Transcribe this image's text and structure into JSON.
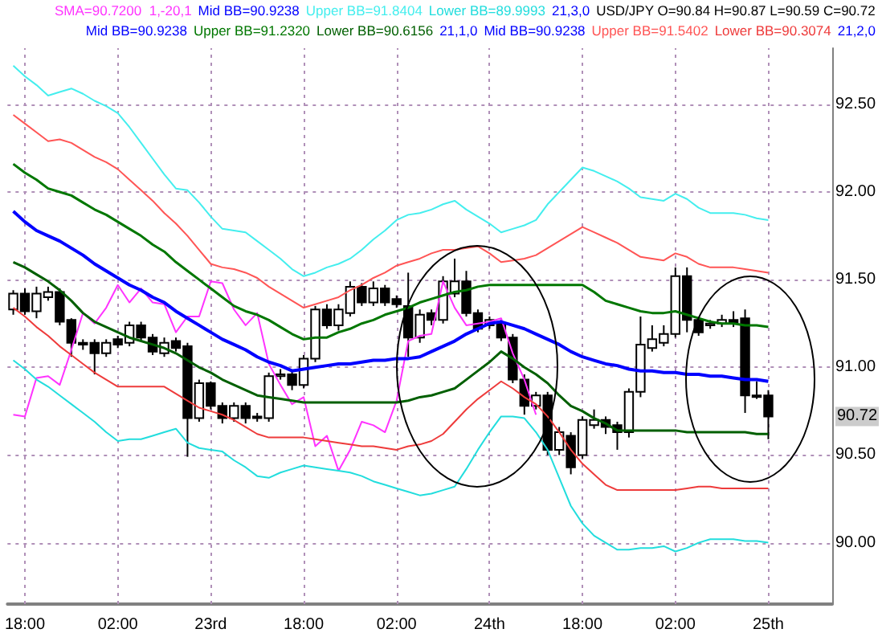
{
  "chart_data": {
    "type": "candlestick",
    "legend": "top",
    "grid": true,
    "categories": [
      null,
      "18:00",
      null,
      null,
      null,
      null,
      null,
      null,
      null,
      "02:00",
      null,
      null,
      null,
      null,
      null,
      null,
      null,
      "23rd",
      null,
      null,
      null,
      null,
      null,
      null,
      null,
      "18:00",
      null,
      null,
      null,
      null,
      null,
      null,
      null,
      "02:00",
      null,
      null,
      null,
      null,
      null,
      null,
      null,
      "24th",
      null,
      null,
      null,
      null,
      null,
      null,
      null,
      "18:00",
      null,
      null,
      null,
      null,
      null,
      null,
      null,
      "02:00",
      null,
      null,
      null,
      null,
      null,
      null,
      null,
      "25th",
      null,
      null,
      null,
      null,
      null
    ],
    "ylim": [
      89.65,
      92.82
    ],
    "yticks": [
      {
        "value": 90,
        "label": "90.00"
      },
      {
        "value": 90.5,
        "label": "90.50"
      },
      {
        "value": 91,
        "label": "91.00"
      },
      {
        "value": 91.5,
        "label": "91.50"
      },
      {
        "value": 92,
        "label": "92.00"
      },
      {
        "value": 92.5,
        "label": "92.50"
      }
    ],
    "annotations": [
      "21,3,0",
      "Mid BB=90.9238",
      "21,1,0",
      "Mid BB=90.9238",
      "21,2,0",
      {
        "text": "90.72",
        "y": 90.72
      }
    ],
    "series": [
      {
        "type": "line",
        "name": "SMA=90.7200  1,-20,1",
        "color": "#ff33ff",
        "values": [
          90.73,
          90.72,
          90.94,
          90.95,
          90.9,
          91.1,
          91.31,
          91.25,
          91.34,
          91.47,
          91.37,
          91.45,
          91.37,
          91.36,
          91.2,
          91.29,
          91.29,
          91.49,
          91.48,
          91.33,
          91.24,
          91.31,
          91.02,
          90.9,
          90.79,
          90.83,
          90.55,
          90.61,
          90.41,
          90.53,
          90.69,
          90.67,
          90.63,
          90.81,
          91.15,
          91.18,
          91.19,
          91.49,
          91.34,
          91.24,
          91.25,
          91.26,
          91.28,
          91.08,
          90.93,
          90.73,
          null,
          null,
          null,
          null,
          null,
          null,
          null,
          null,
          null,
          null,
          null,
          null,
          null,
          null,
          null,
          null,
          null,
          null,
          null,
          null,
          null,
          null,
          null,
          null,
          null
        ]
      },
      {
        "type": "line",
        "name": "Mid BB=90.9238",
        "color": "#0000ff",
        "values": [
          91.89,
          91.83,
          91.78,
          91.75,
          91.72,
          91.68,
          91.64,
          91.59,
          91.55,
          91.51,
          91.47,
          91.44,
          91.4,
          91.37,
          91.32,
          91.28,
          91.24,
          91.2,
          91.16,
          91.13,
          91.1,
          91.06,
          91.03,
          91.01,
          90.98,
          90.99,
          91.0,
          91.01,
          91.02,
          91.02,
          91.03,
          91.04,
          91.04,
          91.05,
          91.05,
          91.06,
          91.09,
          91.12,
          91.15,
          91.19,
          91.22,
          91.25,
          91.26,
          91.24,
          91.22,
          91.19,
          91.16,
          91.13,
          91.09,
          91.06,
          91.04,
          91.02,
          91.01,
          90.99,
          90.98,
          90.98,
          90.97,
          90.97,
          90.96,
          90.96,
          90.95,
          90.95,
          90.94,
          90.93,
          90.93,
          90.92,
          null,
          null,
          null,
          null,
          null
        ]
      },
      {
        "type": "line",
        "name": "Upper BB=91.8404",
        "color": "#44eeee",
        "values": [
          92.72,
          92.66,
          92.61,
          92.55,
          92.57,
          92.59,
          92.56,
          92.52,
          92.49,
          92.45,
          92.37,
          92.28,
          92.19,
          92.1,
          92.02,
          92.01,
          91.94,
          91.86,
          91.79,
          91.78,
          91.77,
          91.72,
          91.67,
          91.62,
          91.56,
          91.52,
          91.54,
          91.57,
          91.59,
          91.62,
          91.67,
          91.73,
          91.78,
          91.84,
          91.87,
          91.88,
          91.9,
          91.93,
          91.95,
          91.9,
          91.86,
          91.82,
          91.77,
          91.79,
          91.81,
          91.84,
          91.93,
          92.0,
          92.07,
          92.14,
          92.12,
          92.09,
          92.06,
          92.02,
          91.97,
          91.96,
          91.95,
          91.99,
          91.96,
          91.91,
          91.88,
          91.88,
          91.88,
          91.87,
          91.85,
          91.84,
          null,
          null,
          null,
          null,
          null
        ]
      },
      {
        "type": "line",
        "name": "Lower BB=89.9993",
        "color": "#22dddd",
        "values": [
          91.04,
          90.99,
          90.93,
          90.89,
          90.84,
          90.79,
          90.74,
          90.69,
          90.63,
          90.58,
          90.59,
          90.59,
          90.61,
          90.63,
          90.65,
          90.57,
          90.54,
          90.53,
          90.52,
          90.47,
          90.43,
          90.38,
          90.37,
          90.4,
          90.42,
          90.44,
          90.43,
          90.42,
          90.41,
          90.4,
          90.38,
          90.35,
          90.33,
          90.31,
          90.29,
          90.27,
          90.28,
          90.3,
          90.32,
          90.42,
          90.53,
          90.63,
          90.72,
          90.72,
          90.71,
          90.63,
          90.53,
          90.37,
          90.21,
          90.11,
          90.04,
          90.0,
          89.96,
          89.96,
          89.97,
          89.97,
          89.98,
          89.95,
          89.97,
          90.0,
          90.02,
          90.02,
          90.02,
          90.01,
          90.01,
          90.0,
          null,
          null,
          null,
          null,
          null
        ]
      },
      {
        "type": "line",
        "name": "Upper BB=91.2320",
        "color": "#007700",
        "values": [
          92.16,
          92.11,
          92.07,
          92.02,
          92.0,
          91.98,
          91.94,
          91.9,
          91.87,
          91.83,
          91.79,
          91.75,
          91.7,
          91.66,
          91.6,
          91.55,
          91.5,
          91.45,
          91.4,
          91.35,
          91.32,
          91.3,
          91.27,
          91.23,
          91.19,
          91.16,
          91.17,
          91.17,
          91.2,
          91.22,
          91.25,
          91.27,
          91.3,
          91.32,
          91.34,
          91.37,
          91.39,
          91.41,
          91.43,
          91.44,
          91.46,
          91.47,
          91.47,
          91.47,
          91.47,
          91.47,
          91.47,
          91.47,
          91.47,
          91.47,
          91.43,
          91.38,
          91.36,
          91.34,
          91.32,
          91.31,
          91.31,
          91.32,
          91.3,
          91.28,
          91.26,
          91.25,
          91.25,
          91.24,
          91.24,
          91.23,
          null,
          null,
          null,
          null,
          null
        ]
      },
      {
        "type": "line",
        "name": "Lower BB=90.6156",
        "color": "#005f00",
        "values": [
          91.6,
          91.57,
          91.53,
          91.49,
          91.44,
          91.38,
          91.31,
          91.26,
          91.23,
          91.2,
          91.17,
          91.15,
          91.13,
          91.11,
          91.08,
          91.04,
          91.0,
          90.97,
          90.93,
          90.9,
          90.87,
          90.84,
          90.83,
          90.82,
          90.81,
          90.8,
          90.8,
          90.8,
          90.8,
          90.8,
          90.8,
          90.8,
          90.8,
          90.8,
          90.81,
          90.83,
          90.84,
          90.86,
          90.88,
          90.93,
          90.98,
          91.03,
          91.09,
          91.05,
          91.0,
          90.96,
          90.91,
          90.84,
          90.78,
          90.75,
          90.71,
          90.68,
          90.64,
          90.64,
          90.64,
          90.64,
          90.64,
          90.64,
          90.63,
          90.63,
          90.63,
          90.63,
          90.63,
          90.63,
          90.62,
          90.62,
          null,
          null,
          null,
          null,
          null
        ]
      },
      {
        "type": "line",
        "name": "Upper BB=91.5402",
        "color": "#ff5555",
        "values": [
          92.44,
          92.39,
          92.34,
          92.29,
          92.3,
          92.28,
          92.24,
          92.2,
          92.17,
          92.13,
          92.07,
          92.01,
          91.95,
          91.88,
          91.82,
          91.75,
          91.67,
          91.59,
          91.57,
          91.56,
          91.54,
          91.51,
          91.46,
          91.42,
          91.38,
          91.34,
          91.36,
          91.38,
          91.4,
          91.44,
          91.47,
          91.51,
          91.54,
          91.58,
          91.6,
          91.62,
          91.65,
          91.67,
          91.67,
          91.68,
          91.69,
          91.65,
          91.6,
          91.61,
          91.62,
          91.64,
          91.68,
          91.72,
          91.76,
          91.8,
          91.77,
          91.74,
          91.71,
          91.67,
          91.63,
          91.62,
          91.61,
          91.65,
          91.63,
          91.59,
          91.57,
          91.57,
          91.57,
          91.56,
          91.55,
          91.54,
          null,
          null,
          null,
          null,
          null
        ]
      },
      {
        "type": "line",
        "name": "Lower BB=90.3074",
        "color": "#ee3b3b",
        "values": [
          91.34,
          91.29,
          91.23,
          91.18,
          91.12,
          91.07,
          91.02,
          90.97,
          90.93,
          90.89,
          90.89,
          90.89,
          90.89,
          90.89,
          90.85,
          90.81,
          90.77,
          90.75,
          90.73,
          90.7,
          90.66,
          90.62,
          90.6,
          90.6,
          90.6,
          90.6,
          90.59,
          90.58,
          90.57,
          90.56,
          90.55,
          90.55,
          90.54,
          90.53,
          90.55,
          90.56,
          90.58,
          90.62,
          90.69,
          90.76,
          90.82,
          90.87,
          90.92,
          90.88,
          90.83,
          90.79,
          90.72,
          90.63,
          90.53,
          90.45,
          90.39,
          90.33,
          90.3,
          90.3,
          90.3,
          90.3,
          90.3,
          90.3,
          90.31,
          90.32,
          90.32,
          90.31,
          90.31,
          90.31,
          90.31,
          90.31,
          null,
          null,
          null,
          null,
          null
        ]
      },
      {
        "name": "USD/JPY O=90.84 H=90.87 L=90.59 C=90.72",
        "color": "#000000",
        "ohlc": [
          [
            91.33,
            91.44,
            91.3,
            91.42
          ],
          [
            91.42,
            91.45,
            91.3,
            91.32
          ],
          [
            91.32,
            91.46,
            91.28,
            91.42
          ],
          [
            91.4,
            91.46,
            91.38,
            91.43
          ],
          [
            91.43,
            91.45,
            91.24,
            91.26
          ],
          [
            91.27,
            91.28,
            91.06,
            91.14
          ],
          [
            91.14,
            91.16,
            91.1,
            91.13
          ],
          [
            91.14,
            91.16,
            90.96,
            91.08
          ],
          [
            91.08,
            91.16,
            91.06,
            91.14
          ],
          [
            91.16,
            91.18,
            91.11,
            91.13
          ],
          [
            91.14,
            91.26,
            91.12,
            91.24
          ],
          [
            91.24,
            91.26,
            91.15,
            91.17
          ],
          [
            91.17,
            91.19,
            91.07,
            91.09
          ],
          [
            91.08,
            91.17,
            91.06,
            91.14
          ],
          [
            91.15,
            91.17,
            91.09,
            91.11
          ],
          [
            91.12,
            91.14,
            90.49,
            90.71
          ],
          [
            90.71,
            90.93,
            90.69,
            90.91
          ],
          [
            90.91,
            90.92,
            90.76,
            90.78
          ],
          [
            90.78,
            90.8,
            90.68,
            90.71
          ],
          [
            90.71,
            90.8,
            90.69,
            90.78
          ],
          [
            90.78,
            90.8,
            90.68,
            90.71
          ],
          [
            90.71,
            90.74,
            90.69,
            90.72
          ],
          [
            90.71,
            90.97,
            90.69,
            90.95
          ],
          [
            90.95,
            90.99,
            90.93,
            90.96
          ],
          [
            90.96,
            90.98,
            90.87,
            90.9
          ],
          [
            90.9,
            91.07,
            90.88,
            91.05
          ],
          [
            91.05,
            91.35,
            91.03,
            91.33
          ],
          [
            91.33,
            91.36,
            91.22,
            91.24
          ],
          [
            91.24,
            91.36,
            91.21,
            91.33
          ],
          [
            91.31,
            91.49,
            91.29,
            91.46
          ],
          [
            91.46,
            91.48,
            91.35,
            91.37
          ],
          [
            91.37,
            91.49,
            91.35,
            91.45
          ],
          [
            91.45,
            91.47,
            91.35,
            91.37
          ],
          [
            91.39,
            91.41,
            91.34,
            91.36
          ],
          [
            91.35,
            91.54,
            91.06,
            91.17
          ],
          [
            91.17,
            91.33,
            91.14,
            91.3
          ],
          [
            91.31,
            91.33,
            91.24,
            91.27
          ],
          [
            91.27,
            91.52,
            91.25,
            91.49
          ],
          [
            91.42,
            91.62,
            91.4,
            91.49
          ],
          [
            91.49,
            91.55,
            91.29,
            91.31
          ],
          [
            91.31,
            91.33,
            91.2,
            91.22
          ],
          [
            91.24,
            91.29,
            91.22,
            91.27
          ],
          [
            91.25,
            91.27,
            91.15,
            91.17
          ],
          [
            91.17,
            91.19,
            90.91,
            90.93
          ],
          [
            90.93,
            90.96,
            90.73,
            90.78
          ],
          [
            90.78,
            90.86,
            90.76,
            90.84
          ],
          [
            90.84,
            90.86,
            90.5,
            90.53
          ],
          [
            90.53,
            90.66,
            90.5,
            90.63
          ],
          [
            90.61,
            90.63,
            90.39,
            90.43
          ],
          [
            90.5,
            90.72,
            90.48,
            90.7
          ],
          [
            90.67,
            90.76,
            90.65,
            90.7
          ],
          [
            90.7,
            90.72,
            90.62,
            90.66
          ],
          [
            90.67,
            90.69,
            90.53,
            90.63
          ],
          [
            90.63,
            90.88,
            90.6,
            90.86
          ],
          [
            90.86,
            91.29,
            90.83,
            91.13
          ],
          [
            91.11,
            91.24,
            91.09,
            91.16
          ],
          [
            91.14,
            91.24,
            91.12,
            91.19
          ],
          [
            91.19,
            91.57,
            91.17,
            91.52
          ],
          [
            91.52,
            91.57,
            91.2,
            91.27
          ],
          [
            91.27,
            91.29,
            91.18,
            91.2
          ],
          [
            91.24,
            91.27,
            91.22,
            91.25
          ],
          [
            91.25,
            91.3,
            91.23,
            91.27
          ],
          [
            91.27,
            91.32,
            91.23,
            91.25
          ],
          [
            91.28,
            91.33,
            90.74,
            90.84
          ],
          [
            90.84,
            90.92,
            90.82,
            90.84
          ],
          [
            90.84,
            90.87,
            90.59,
            90.72
          ],
          null,
          null,
          null,
          null,
          null
        ]
      }
    ]
  }
}
